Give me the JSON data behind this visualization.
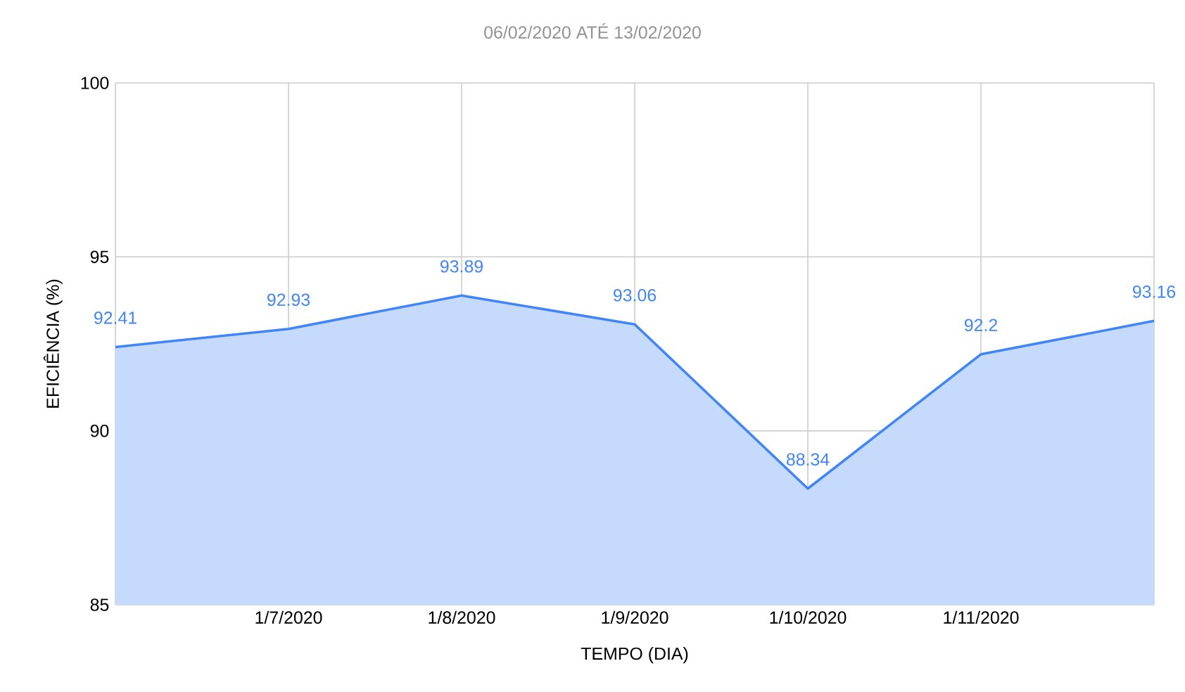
{
  "chart_data": {
    "type": "area",
    "title": "06/02/2020 ATÉ 13/02/2020",
    "xlabel": "TEMPO (DIA)",
    "ylabel": "EFICIÊNCIA (%)",
    "categories": [
      null,
      "1/7/2020",
      "1/8/2020",
      "1/9/2020",
      "1/10/2020",
      "1/11/2020",
      null
    ],
    "series": [
      {
        "color": "#4285f4",
        "values": [
          92.41,
          92.93,
          93.89,
          93.06,
          88.34,
          92.2,
          93.16
        ]
      }
    ],
    "ylim": [
      85,
      100
    ],
    "yticks": [
      85,
      90,
      95,
      100
    ],
    "grid": true,
    "data_labels": true
  }
}
